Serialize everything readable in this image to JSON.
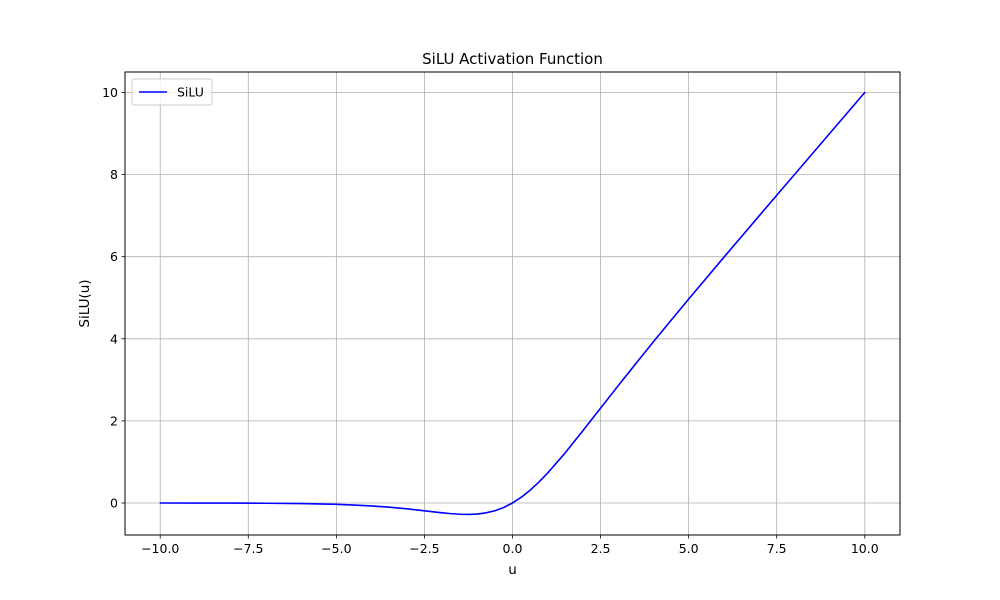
{
  "chart_data": {
    "type": "line",
    "title": "SiLU Activation Function",
    "xlabel": "u",
    "ylabel": "SiLU(u)",
    "xlim": [
      -11.0,
      11.0
    ],
    "ylim": [
      -0.78,
      10.5
    ],
    "xticks": [
      -10.0,
      -7.5,
      -5.0,
      -2.5,
      0.0,
      2.5,
      5.0,
      7.5,
      10.0
    ],
    "xtick_labels": [
      "−10.0",
      "−7.5",
      "−5.0",
      "−2.5",
      "0.0",
      "2.5",
      "5.0",
      "7.5",
      "10.0"
    ],
    "yticks": [
      0,
      2,
      4,
      6,
      8,
      10
    ],
    "ytick_labels": [
      "0",
      "2",
      "4",
      "6",
      "8",
      "10"
    ],
    "grid": true,
    "legend_position": "upper-left",
    "series": [
      {
        "name": "SiLU",
        "color": "#0000ff",
        "x": [
          -10,
          -9,
          -8,
          -7,
          -6,
          -5,
          -4.5,
          -4,
          -3.5,
          -3,
          -2.5,
          -2,
          -1.75,
          -1.5,
          -1.25,
          -1,
          -0.75,
          -0.5,
          -0.25,
          0,
          0.25,
          0.5,
          0.75,
          1,
          1.5,
          2,
          2.5,
          3,
          3.5,
          4,
          4.5,
          5,
          6,
          7,
          8,
          9,
          10
        ],
        "y": [
          -0.0005,
          -0.0011,
          -0.0027,
          -0.0064,
          -0.0148,
          -0.0335,
          -0.0495,
          -0.0719,
          -0.1019,
          -0.1423,
          -0.1896,
          -0.2384,
          -0.2592,
          -0.2744,
          -0.2779,
          -0.2689,
          -0.2398,
          -0.1888,
          -0.1097,
          0.0,
          0.1403,
          0.3112,
          0.5102,
          0.7311,
          1.2256,
          1.7616,
          2.3104,
          2.8577,
          3.3942,
          3.9281,
          4.45,
          4.9665,
          5.9852,
          6.9936,
          7.9973,
          8.9989,
          9.9995
        ]
      }
    ]
  }
}
